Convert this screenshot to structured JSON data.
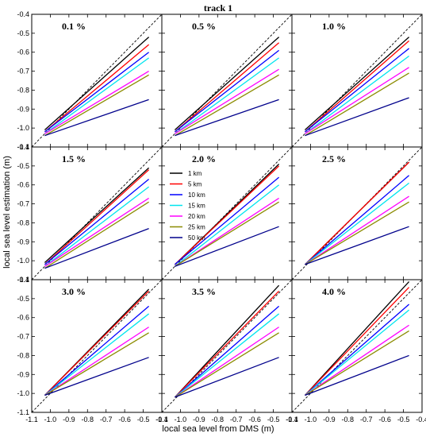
{
  "title": "track 1",
  "xlabel": "local sea level from DMS (m)",
  "ylabel": "local sea level estimation (m)",
  "colors": {
    "1 km": "#000000",
    "5 km": "#ff0000",
    "10 km": "#0000ff",
    "15 km": "#00e5ee",
    "20 km": "#ff00ff",
    "25 km": "#8b8b00",
    "50 km": "#00008b"
  },
  "chart_data": {
    "type": "line",
    "layout": "3x3 small multiples",
    "title": "track 1",
    "xlabel": "local sea level from DMS (m)",
    "ylabel": "local sea level estimation (m)",
    "xlim": [
      -1.1,
      -0.4
    ],
    "ylim": [
      -1.1,
      -0.4
    ],
    "x_ticks": [
      "-1.1",
      "-1.0",
      "-0.9",
      "-0.8",
      "-0.7",
      "-0.6",
      "-0.5",
      "-0.4"
    ],
    "y_ticks": [
      "-0.4",
      "-0.5",
      "-0.6",
      "-0.7",
      "-0.8",
      "-0.9",
      "-1.0",
      "-1.1"
    ],
    "reference_line": "1:1 dashed",
    "legend": {
      "location": "panel 2.0 %, upper-left",
      "entries": [
        "1 km",
        "5 km",
        "10 km",
        "15 km",
        "20 km",
        "25 km",
        "50 km"
      ]
    },
    "series_names": [
      "1 km",
      "5 km",
      "10 km",
      "15 km",
      "20 km",
      "25 km",
      "50 km"
    ],
    "x_start": -1.03,
    "x_end": -0.47,
    "panels": [
      {
        "label": "0.1 %",
        "y_start": [
          -1.01,
          -1.02,
          -1.02,
          -1.03,
          -1.03,
          -1.04,
          -1.04
        ],
        "y_end": [
          -0.52,
          -0.56,
          -0.6,
          -0.63,
          -0.7,
          -0.72,
          -0.85
        ]
      },
      {
        "label": "0.5 %",
        "y_start": [
          -1.01,
          -1.02,
          -1.02,
          -1.03,
          -1.03,
          -1.04,
          -1.04
        ],
        "y_end": [
          -0.52,
          -0.55,
          -0.59,
          -0.63,
          -0.69,
          -0.72,
          -0.85
        ]
      },
      {
        "label": "1.0 %",
        "y_start": [
          -1.01,
          -1.02,
          -1.02,
          -1.03,
          -1.03,
          -1.04,
          -1.04
        ],
        "y_end": [
          -0.52,
          -0.54,
          -0.58,
          -0.62,
          -0.68,
          -0.71,
          -0.84
        ]
      },
      {
        "label": "1.5 %",
        "y_start": [
          -1.01,
          -1.02,
          -1.02,
          -1.03,
          -1.03,
          -1.04,
          -1.04
        ],
        "y_end": [
          -0.51,
          -0.52,
          -0.57,
          -0.61,
          -0.67,
          -0.69,
          -0.83
        ]
      },
      {
        "label": "2.0 %",
        "y_start": [
          -1.02,
          -1.02,
          -1.02,
          -1.03,
          -1.03,
          -1.03,
          -1.03
        ],
        "y_end": [
          -0.49,
          -0.5,
          -0.56,
          -0.6,
          -0.67,
          -0.69,
          -0.82
        ]
      },
      {
        "label": "2.5 %",
        "y_start": [
          -1.02,
          -1.02,
          -1.02,
          -1.02,
          -1.02,
          -1.02,
          -1.02
        ],
        "y_end": [
          -0.48,
          -0.48,
          -0.55,
          -0.59,
          -0.66,
          -0.69,
          -0.82
        ]
      },
      {
        "label": "3.0 %",
        "y_start": [
          -1.01,
          -1.01,
          -1.01,
          -1.01,
          -1.01,
          -1.01,
          -1.01
        ],
        "y_end": [
          -0.45,
          -0.46,
          -0.54,
          -0.58,
          -0.65,
          -0.68,
          -0.81
        ]
      },
      {
        "label": "3.5 %",
        "y_start": [
          -1.02,
          -1.02,
          -1.02,
          -1.02,
          -1.02,
          -1.02,
          -1.02
        ],
        "y_end": [
          -0.43,
          -0.46,
          -0.54,
          -0.58,
          -0.65,
          -0.68,
          -0.81
        ]
      },
      {
        "label": "4.0 %",
        "y_start": [
          -1.01,
          -1.01,
          -1.01,
          -1.01,
          -1.01,
          -1.01,
          -1.01
        ],
        "y_end": [
          -0.41,
          -0.44,
          -0.53,
          -0.56,
          -0.64,
          -0.67,
          -0.8
        ]
      }
    ]
  }
}
